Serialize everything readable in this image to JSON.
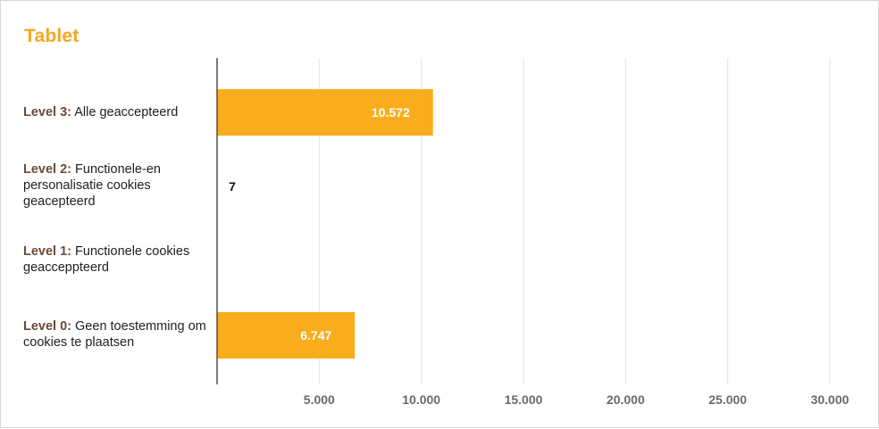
{
  "chart_data": {
    "type": "bar",
    "orientation": "horizontal",
    "title": "Tablet",
    "categories": [
      {
        "level": "Level 3:",
        "text": "Alle geaccepteerd"
      },
      {
        "level": "Level 2:",
        "text": "Functionele-en personalisatie cookies geacepteerd"
      },
      {
        "level": "Level 1:",
        "text": "Functionele cookies geacceppteerd"
      },
      {
        "level": "Level 0:",
        "text": "Geen toestemming om cookies te plaatsen"
      }
    ],
    "values": [
      10572,
      7,
      0,
      6747
    ],
    "value_labels": [
      "10.572",
      "7",
      "",
      "6.747"
    ],
    "xlim": [
      0,
      30000
    ],
    "x_ticks": [
      5000,
      10000,
      15000,
      20000,
      25000,
      30000
    ],
    "x_tick_labels": [
      "5.000",
      "10.000",
      "15.000",
      "20.000",
      "25.000",
      "30.000"
    ],
    "grid": true,
    "legend": "none",
    "colors": {
      "bar": "#f9ad1d",
      "title": "#f5a623",
      "level_label": "#6b4a3a",
      "grid": "#e2e2e2",
      "axis": "#5a4a42",
      "inside_label": "#ffffff",
      "outside_label": "#111111",
      "tick_label": "#6a6a6a"
    }
  }
}
